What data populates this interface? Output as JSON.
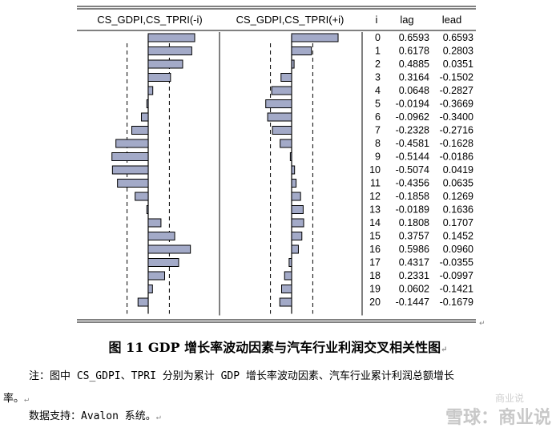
{
  "chart_data": {
    "type": "table",
    "headers": [
      "CS_GDPI,CS_TPRI(-i)",
      "CS_GDPI,CS_TPRI(+i)",
      "i",
      "lag",
      "lead"
    ],
    "rows": [
      {
        "i": "0",
        "lag": "0.6593",
        "lead": "0.6593"
      },
      {
        "i": "1",
        "lag": "0.6178",
        "lead": "0.2803"
      },
      {
        "i": "2",
        "lag": "0.4885",
        "lead": "0.0351"
      },
      {
        "i": "3",
        "lag": "0.3164",
        "lead": "-0.1502"
      },
      {
        "i": "4",
        "lag": "0.0648",
        "lead": "-0.2827"
      },
      {
        "i": "5",
        "lag": "-0.0194",
        "lead": "-0.3669"
      },
      {
        "i": "6",
        "lag": "-0.0962",
        "lead": "-0.3400"
      },
      {
        "i": "7",
        "lag": "-0.2328",
        "lead": "-0.2716"
      },
      {
        "i": "8",
        "lag": "-0.4581",
        "lead": "-0.1628"
      },
      {
        "i": "9",
        "lag": "-0.5144",
        "lead": "-0.0186"
      },
      {
        "i": "10",
        "lag": "-0.5074",
        "lead": "0.0419"
      },
      {
        "i": "11",
        "lag": "-0.4356",
        "lead": "0.0635"
      },
      {
        "i": "12",
        "lag": "-0.1858",
        "lead": "0.1269"
      },
      {
        "i": "13",
        "lag": "-0.0189",
        "lead": "0.1636"
      },
      {
        "i": "14",
        "lag": "0.1808",
        "lead": "0.1707"
      },
      {
        "i": "15",
        "lag": "0.3757",
        "lead": "0.1452"
      },
      {
        "i": "16",
        "lag": "0.5986",
        "lead": "0.0960"
      },
      {
        "i": "17",
        "lag": "0.4317",
        "lead": "-0.0355"
      },
      {
        "i": "18",
        "lag": "0.2331",
        "lead": "-0.0997"
      },
      {
        "i": "19",
        "lag": "0.0602",
        "lead": "-0.1421"
      },
      {
        "i": "20",
        "lag": "-0.1447",
        "lead": "-0.1679"
      }
    ],
    "bar_color": "#a3aac8",
    "bar_stroke": "#000000"
  },
  "caption": "图 11 GDP 增长率波动因素与汽车行业利润交叉相关性图",
  "note_line1": "注：图中 CS_GDPI、TPRI 分别为累计 GDP 增长率波动因素、汽车行业累计利润总额增长",
  "note_line2": "率。",
  "source": "数据支持：Avalon 系统。",
  "watermark": "雪球：商业说",
  "watermark_small": "商业说"
}
